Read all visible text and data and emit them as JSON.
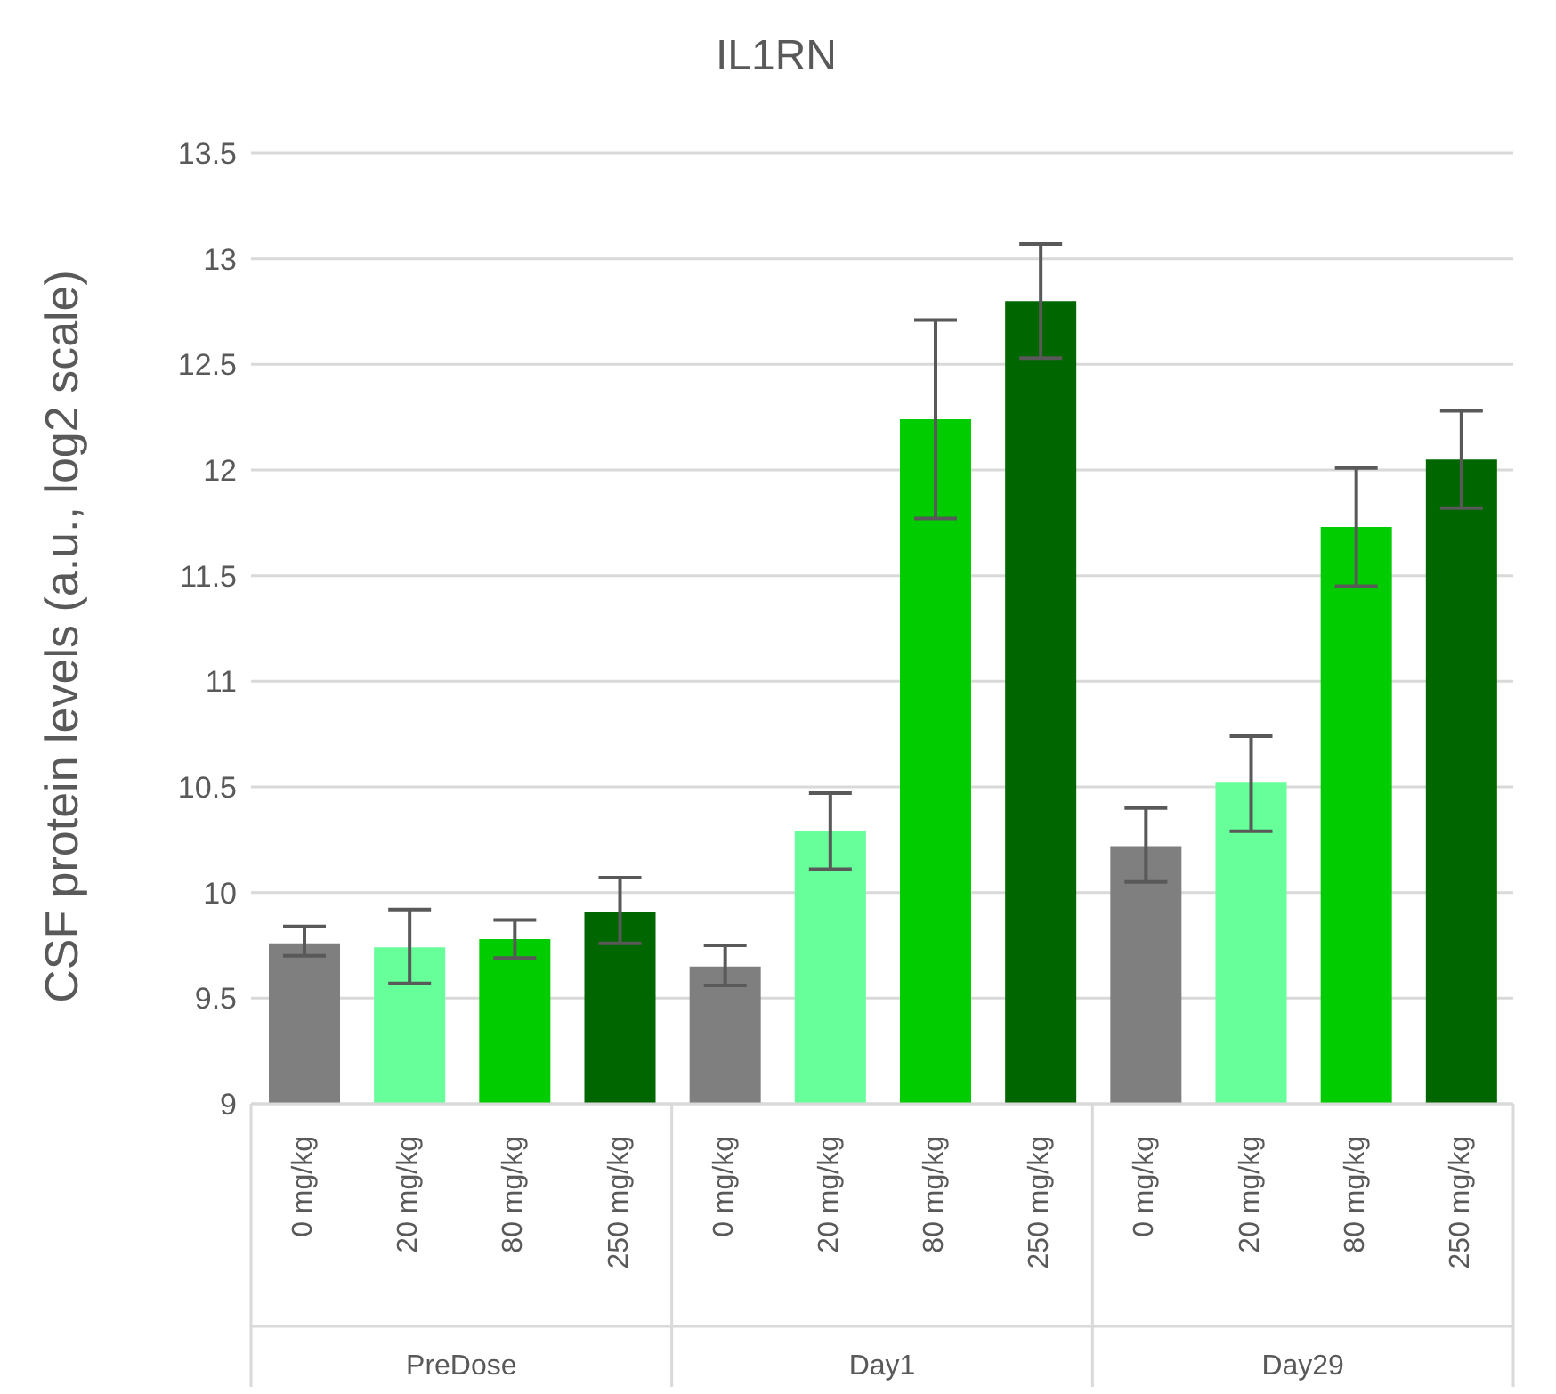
{
  "chart_data": {
    "type": "bar",
    "title": "IL1RN",
    "ylabel": "CSF protein levels (a.u., log2 scale)",
    "categories": [
      "0 mg/kg",
      "20 mg/kg",
      "80 mg/kg",
      "250 mg/kg",
      "0 mg/kg",
      "20 mg/kg",
      "80 mg/kg",
      "250 mg/kg",
      "0 mg/kg",
      "20 mg/kg",
      "80 mg/kg",
      "250 mg/kg"
    ],
    "values": [
      9.76,
      9.74,
      9.78,
      9.91,
      9.65,
      10.29,
      12.24,
      12.8,
      10.22,
      10.52,
      11.73,
      12.05
    ],
    "errors": [
      [
        9.7,
        9.84
      ],
      [
        9.57,
        9.92
      ],
      [
        9.69,
        9.87
      ],
      [
        9.76,
        10.07
      ],
      [
        9.56,
        9.75
      ],
      [
        10.11,
        10.47
      ],
      [
        11.77,
        12.71
      ],
      [
        12.53,
        13.07
      ],
      [
        10.05,
        10.4
      ],
      [
        10.29,
        10.74
      ],
      [
        11.45,
        12.01
      ],
      [
        11.82,
        12.28
      ]
    ],
    "colors": [
      "#7f7f7f",
      "#66ff99",
      "#00cc00",
      "#006600",
      "#7f7f7f",
      "#66ff99",
      "#00cc00",
      "#006600",
      "#7f7f7f",
      "#66ff99",
      "#00cc00",
      "#006600"
    ],
    "annotations": [
      "PreDose",
      "Day1",
      "Day29"
    ],
    "ylim": [
      9,
      13.5
    ],
    "yticks": [
      9,
      9.5,
      10,
      10.5,
      11,
      11.5,
      12,
      12.5,
      13,
      13.5
    ],
    "grid": "y"
  }
}
